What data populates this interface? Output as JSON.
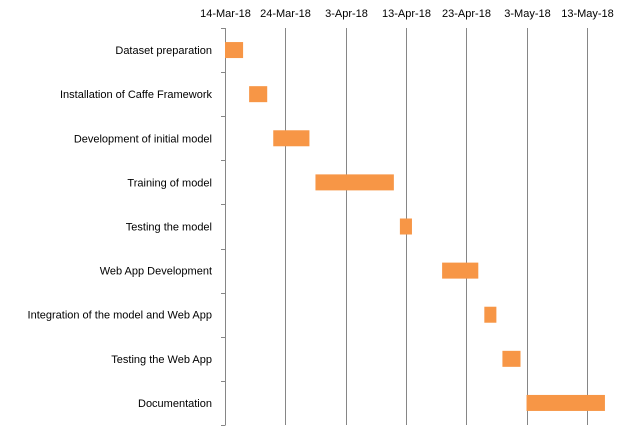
{
  "chart_data": {
    "type": "bar",
    "orientation": "horizontal-gantt",
    "title": "",
    "xlabel": "",
    "ylabel": "",
    "x_axis_position": "top",
    "grid": true,
    "bar_color": "#F79646",
    "grid_color": "#868686",
    "xlim": [
      "2018-03-14",
      "2018-05-18"
    ],
    "tick_labels": [
      "14-Mar-18",
      "24-Mar-18",
      "3-Apr-18",
      "13-Apr-18",
      "23-Apr-18",
      "3-May-18",
      "13-May-18"
    ],
    "tick_dates": [
      "2018-03-14",
      "2018-03-24",
      "2018-04-03",
      "2018-04-13",
      "2018-04-23",
      "2018-05-03",
      "2018-05-13"
    ],
    "tasks": [
      {
        "name": "Dataset preparation",
        "start": "2018-03-14",
        "end": "2018-03-17"
      },
      {
        "name": "Installation  of Caffe Framework",
        "start": "2018-03-18",
        "end": "2018-03-21"
      },
      {
        "name": "Development of initial  model",
        "start": "2018-03-22",
        "end": "2018-03-28"
      },
      {
        "name": "Training of model",
        "start": "2018-03-29",
        "end": "2018-04-11"
      },
      {
        "name": "Testing the model",
        "start": "2018-04-12",
        "end": "2018-04-14"
      },
      {
        "name": "Web App Development",
        "start": "2018-04-19",
        "end": "2018-04-25"
      },
      {
        "name": "Integration of the model and Web App",
        "start": "2018-04-26",
        "end": "2018-04-28"
      },
      {
        "name": "Testing the Web App",
        "start": "2018-04-29",
        "end": "2018-05-02"
      },
      {
        "name": "Documentation",
        "start": "2018-05-03",
        "end": "2018-05-16"
      }
    ]
  }
}
